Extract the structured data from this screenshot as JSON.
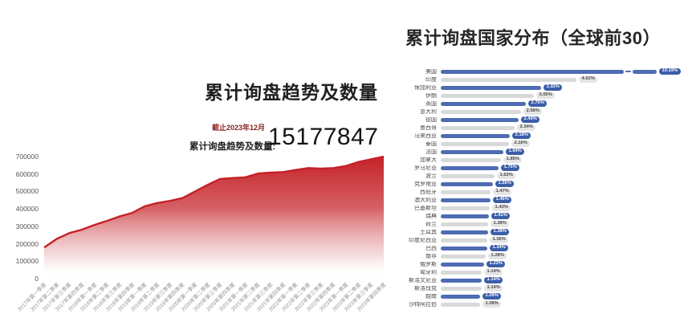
{
  "left_chart": {
    "title": "累计询盘趋势及数量",
    "as_of_label": "截止2023年12月",
    "stat_label": "累计询盘趋势及数量:",
    "stat_value": "15177847"
  },
  "right_chart": {
    "title": "累计询盘国家分布（全球前30）"
  },
  "colors": {
    "area_red": "#c42127",
    "bar_blue": "#4e6cb2",
    "bar_gray": "#d9d9d9",
    "pill_blue": "#3b5ea9",
    "pill_gray": "#e5e5e5",
    "pill_gray_text": "#4a4a4a",
    "title_dark": "#262626",
    "as_of_red": "#8a1f1f"
  },
  "chart_data": [
    {
      "type": "area",
      "title": "累计询盘趋势及数量",
      "subtitle": "截止2023年12月 累计询盘趋势及数量: 15177847",
      "xlabel": "",
      "ylabel": "",
      "ylim": [
        0,
        700000
      ],
      "yticks": [
        0,
        100000,
        200000,
        300000,
        400000,
        500000,
        600000,
        700000
      ],
      "grid": false,
      "legend": "none",
      "x": [
        "2017年第一季度",
        "2017年第二季度",
        "2017年第三季度",
        "2017年第四季度",
        "2018年第一季度",
        "2018年第二季度",
        "2018年第三季度",
        "2018年第四季度",
        "2019年第一季度",
        "2019年第二季度",
        "2019年第三季度",
        "2019年第四季度",
        "2020年第一季度",
        "2020年第二季度",
        "2020年第三季度",
        "2020年第四季度",
        "2021年第一季度",
        "2021年第二季度",
        "2021年第三季度",
        "2021年第四季度",
        "2022年第一季度",
        "2022年第二季度",
        "2022年第三季度",
        "2022年第四季度",
        "2023年第一季度",
        "2023年第二季度",
        "2023年第三季度",
        "2023年第四季度"
      ],
      "values": [
        178000,
        228000,
        261000,
        281000,
        308000,
        331000,
        357000,
        377000,
        415000,
        434000,
        446000,
        462000,
        500000,
        538000,
        572000,
        577000,
        581000,
        603000,
        608000,
        611000,
        623000,
        634000,
        631000,
        634000,
        646000,
        669000,
        685000,
        700000
      ]
    },
    {
      "type": "bar",
      "orientation": "horizontal",
      "title": "累计询盘国家分布（全球前30）",
      "unit": "%",
      "legend": "none",
      "broken_bar_index": 0,
      "categories": [
        "美国",
        "印度",
        "保加利亚",
        "伊朗",
        "英国",
        "意大利",
        "德国",
        "墨西哥",
        "马来西亚",
        "泰国",
        "法国",
        "加拿大",
        "罗马尼亚",
        "波兰",
        "克罗地亚",
        "西班牙",
        "澳大利亚",
        "巴基斯坦",
        "瑞典",
        "荷兰",
        "土耳其",
        "印度尼西亚",
        "巴西",
        "南非",
        "俄罗斯",
        "匈牙利",
        "斯洛文尼亚",
        "斯洛伐克",
        "越南",
        "沙特阿拉伯"
      ],
      "values": [
        10.19,
        4.62,
        3.32,
        3.05,
        2.75,
        2.58,
        2.49,
        2.34,
        2.18,
        2.16,
        1.94,
        1.85,
        1.75,
        1.62,
        1.55,
        1.47,
        1.46,
        1.43,
        1.41,
        1.38,
        1.38,
        1.35,
        1.34,
        1.28,
        1.23,
        1.14,
        1.14,
        1.14,
        1.09,
        1.08
      ]
    }
  ]
}
